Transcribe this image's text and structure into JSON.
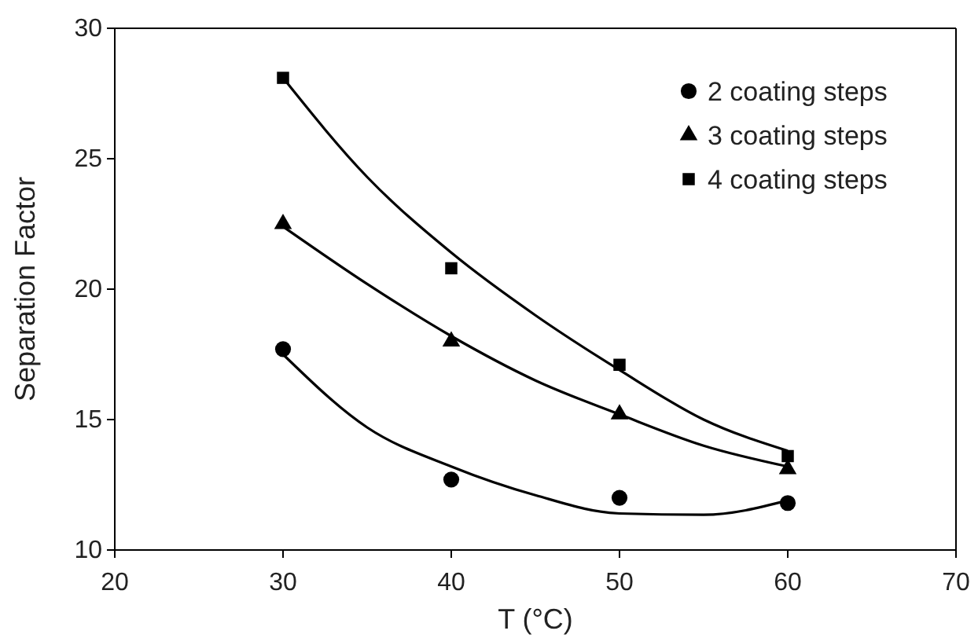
{
  "chart_data": {
    "type": "scatter",
    "xlabel": "T (°C)",
    "ylabel": "Separation Factor",
    "xlim": [
      20,
      70
    ],
    "xticks": [
      20,
      30,
      40,
      50,
      60,
      70
    ],
    "ylim": [
      10,
      30
    ],
    "yticks": [
      10,
      15,
      20,
      25,
      30
    ],
    "grid": false,
    "legend": "top right",
    "series": [
      {
        "name": "2 coating steps",
        "marker": "circle",
        "color": "#000000",
        "x": [
          30,
          40,
          50,
          60
        ],
        "values": [
          17.7,
          12.7,
          12.0,
          11.8
        ]
      },
      {
        "name": "3 coating steps",
        "marker": "triangle",
        "color": "#000000",
        "x": [
          30,
          40,
          50,
          60
        ],
        "values": [
          22.5,
          18.0,
          15.2,
          13.1
        ]
      },
      {
        "name": "4 coating steps",
        "marker": "square",
        "color": "#000000",
        "x": [
          30,
          40,
          50,
          60
        ],
        "values": [
          28.1,
          20.8,
          17.1,
          13.6
        ]
      },
      {
        "type": "line",
        "marker": "none",
        "line_style": "solid",
        "color": "#000000",
        "x": [
          30,
          35,
          40,
          45,
          50,
          55,
          60
        ],
        "values": [
          17.5,
          14.7,
          13.2,
          12.1,
          11.4,
          11.35,
          11.9
        ]
      },
      {
        "type": "line",
        "marker": "none",
        "line_style": "solid",
        "color": "#000000",
        "x": [
          30,
          35,
          40,
          45,
          50,
          55,
          60
        ],
        "values": [
          22.4,
          20.2,
          18.2,
          16.5,
          15.2,
          14.0,
          13.2
        ]
      },
      {
        "type": "line",
        "marker": "none",
        "line_style": "solid",
        "color": "#000000",
        "x": [
          30,
          35,
          40,
          45,
          50,
          55,
          60
        ],
        "values": [
          28.1,
          24.3,
          21.4,
          19.0,
          16.9,
          15.0,
          13.8
        ]
      }
    ]
  }
}
